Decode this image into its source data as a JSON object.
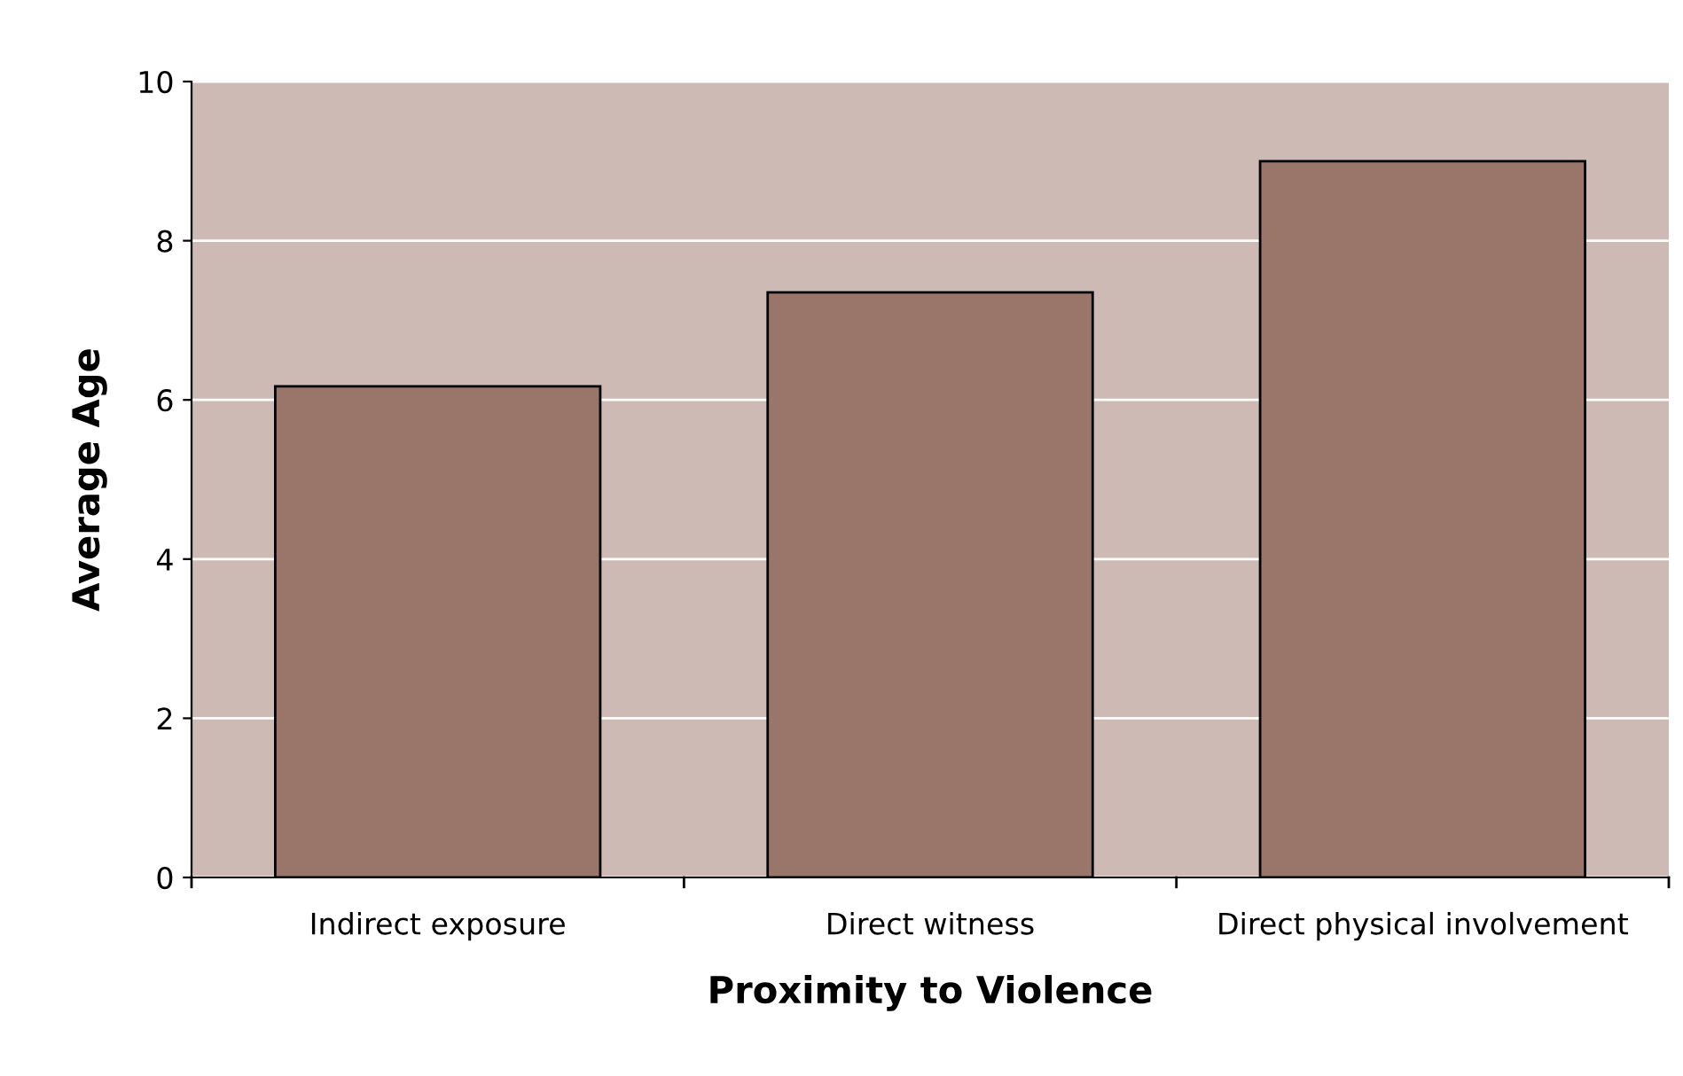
{
  "chart_data": {
    "type": "bar",
    "xlabel": "Proximity to Violence",
    "ylabel": "Average Age",
    "categories": [
      "Indirect exposure",
      "Direct witness",
      "Direct physical involvement"
    ],
    "values": [
      6.17,
      7.35,
      9.0
    ],
    "color": "#9a766a",
    "ylim": [
      0,
      10
    ],
    "yticks": [
      0,
      2,
      4,
      6,
      8,
      10
    ],
    "grid": "y"
  }
}
